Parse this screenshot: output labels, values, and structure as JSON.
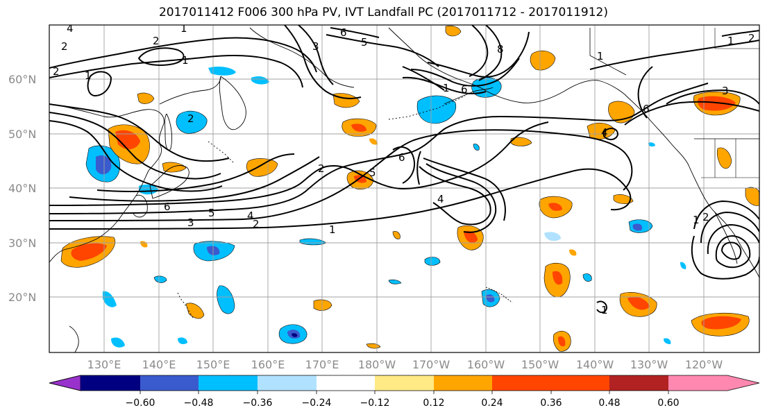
{
  "title": "2017011412 F006 300 hPa PV, IVT Landfall PC (2017011712 - 2017011912)",
  "latitude_labels": [
    "60°N",
    "50°N",
    "40°N",
    "30°N",
    "20°N"
  ],
  "longitude_labels": [
    "130°E",
    "140°E",
    "150°E",
    "160°E",
    "170°E",
    "180°W",
    "170°W",
    "160°W",
    "150°W",
    "140°W",
    "130°W",
    "120°W"
  ],
  "contour_levels": [
    "1",
    "2",
    "3",
    "4",
    "5",
    "6",
    "8"
  ],
  "colorbar": {
    "tick_labels": [
      "−0.60",
      "−0.48",
      "−0.36",
      "−0.24",
      "−0.12",
      "0.12",
      "0.24",
      "0.36",
      "0.48",
      "0.60"
    ],
    "colors": [
      "#9932cc",
      "#000080",
      "#3a5bcd",
      "#00bfff",
      "#b0e2ff",
      "#ffffff",
      "#ffea85",
      "#ffa500",
      "#ff4500",
      "#b22222",
      "#ff88b0"
    ]
  },
  "map": {
    "colors": {
      "contour": "#000000",
      "coast": "#000000",
      "grid": "#a0a0a0",
      "neg_strong": "#3a5bcd",
      "neg_mid": "#00bfff",
      "neg_weak": "#b0e2ff",
      "pos_weak": "#ffea85",
      "pos_mid": "#ffa500",
      "pos_strong": "#ff4500",
      "neg_deep": "#000080"
    }
  }
}
